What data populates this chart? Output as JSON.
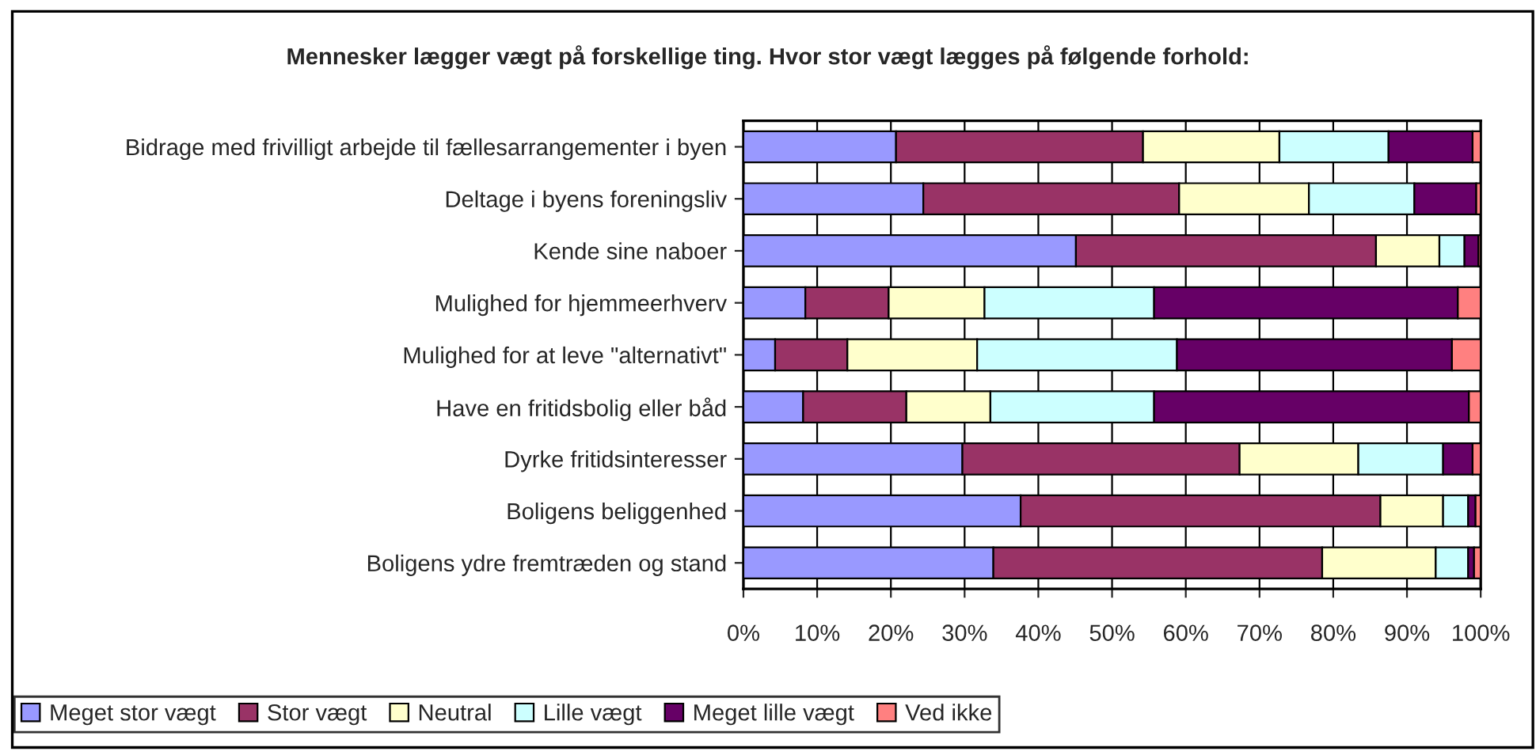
{
  "chart_data": {
    "type": "bar",
    "orientation": "horizontal",
    "stacked": true,
    "title": "Mennesker lægger vægt på forskellige ting. Hvor stor vægt lægges på følgende forhold:",
    "categories": [
      "Bidrage med frivilligt arbejde til fællesarrangementer i byen",
      "Deltage i byens foreningsliv",
      "Kende sine naboer",
      "Mulighed for hjemmeerhverv",
      "Mulighed for at leve \"alternativt\"",
      "Have en fritidsbolig eller båd",
      "Dyrke fritidsinteresser",
      "Boligens beliggenhed",
      "Boligens ydre fremtræden og stand"
    ],
    "series": [
      {
        "name": "Meget stor vægt",
        "color": "#9999ff",
        "values": [
          20.7,
          24.4,
          45.1,
          8.4,
          4.3,
          8.1,
          29.7,
          37.6,
          33.9
        ]
      },
      {
        "name": "Stor vægt",
        "color": "#993366",
        "values": [
          33.5,
          34.7,
          40.7,
          11.3,
          9.8,
          14.0,
          37.6,
          48.8,
          44.6
        ]
      },
      {
        "name": "Neutral",
        "color": "#ffffcc",
        "values": [
          18.5,
          17.6,
          8.6,
          13.0,
          17.6,
          11.4,
          16.1,
          8.5,
          15.4
        ]
      },
      {
        "name": "Lille vægt",
        "color": "#ccffff",
        "values": [
          14.8,
          14.3,
          3.4,
          23.0,
          27.1,
          22.2,
          11.5,
          3.4,
          4.4
        ]
      },
      {
        "name": "Meget lille vægt",
        "color": "#660066",
        "values": [
          11.4,
          8.4,
          1.9,
          41.2,
          37.3,
          42.7,
          4.0,
          1.0,
          0.8
        ]
      },
      {
        "name": "Ved ikke",
        "color": "#ff8080",
        "values": [
          1.1,
          0.6,
          0.3,
          3.1,
          3.9,
          1.6,
          1.1,
          0.7,
          0.9
        ]
      }
    ],
    "xlim": [
      0,
      100
    ],
    "xticks": [
      {
        "value": 0,
        "label": "0%"
      },
      {
        "value": 10,
        "label": "10%"
      },
      {
        "value": 20,
        "label": "20%"
      },
      {
        "value": 30,
        "label": "30%"
      },
      {
        "value": 40,
        "label": "40%"
      },
      {
        "value": 50,
        "label": "50%"
      },
      {
        "value": 60,
        "label": "60%"
      },
      {
        "value": 70,
        "label": "70%"
      },
      {
        "value": 80,
        "label": "80%"
      },
      {
        "value": 90,
        "label": "90%"
      },
      {
        "value": 100,
        "label": "100%"
      }
    ],
    "grid": "x",
    "legend": "bottom"
  }
}
